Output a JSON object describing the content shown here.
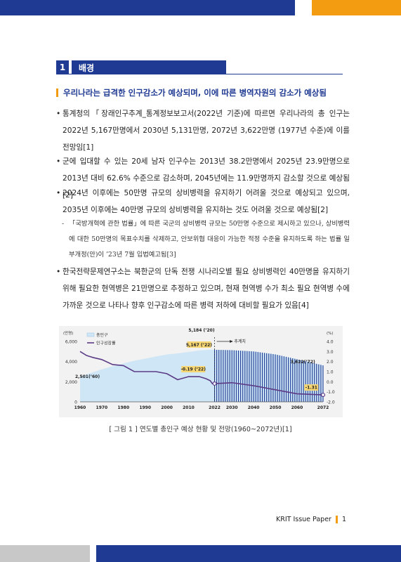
{
  "section": {
    "number": "1",
    "title": "배경"
  },
  "subheading": "우리나라는 급격한 인구감소가 예상되며, 이에 따른 병역자원의 감소가 예상됨",
  "bullets": [
    "통계청의「장래인구추계_통계정보보고서(2022년 기준)에 따르면 우리나라의 총 인구는 2022년 5,167만명에서 2030년 5,131만명, 2072년 3,622만명 (1977년 수준)에 이를 전망임[1]",
    "군에 입대할 수 있는 20세 남자 인구수는 2013년 38.2만명에서 2025년 23.9만명으로 2013년 대비 62.6% 수준으로 감소하며, 2045년에는 11.9만명까지 감소할 것으로 예상됨[2]",
    "2024년 이후에는 50만명 규모의 상비병력을 유지하기 어려울 것으로 예상되고 있으며, 2035년 이후에는 40만명 규모의 상비병력을 유지하는 것도 어려울 것으로 예상됨[2]",
    "한국전략문제연구소는 북한군의 단독 전쟁 시나리오별 필요 상비병력인 40만명을 유지하기 위해 필요한 현역병은 21만명으로 추정하고 있으며, 현재 현역병 수가 최소 필요 현역병 수에 가까운 것으로 나타나 향후 인구감소에 따른 병력 저하에 대비할 필요가 있음[4]"
  ],
  "sub_bullet": "「국방개혁에 관한 법률」에 따른 국군의 상비병력 규모는 50만명 수준으로 제시하고 있으나, 상비병력에 대한 50만명의 목표수치를 삭제하고, 안보위협 대응이 가능한 적정 수준을 유지하도록 하는 법률 일부개정(안)이 ’23년 7월 입법예고됨[3]",
  "colors": {
    "navy": "#1f3a93",
    "orange": "#f39c12",
    "pop_fill": "#cfe6f6",
    "growth_line": "#5b3b86",
    "projection": "#1f3a93"
  },
  "chart_data": {
    "type": "area",
    "y_left_unit": "(만명)",
    "y_right_unit": "(%)",
    "y_left_ticks": [
      "6,000",
      "4,000",
      "2,000",
      "0"
    ],
    "y_right_ticks": [
      "4.0",
      "3.0",
      "2.0",
      "1.0",
      "0.0",
      "-1.0",
      "-2.0"
    ],
    "x_ticks": [
      "1960",
      "1970",
      "1980",
      "1990",
      "2000",
      "2010",
      "2022",
      "2030",
      "2040",
      "2050",
      "2060",
      "2072"
    ],
    "ylim_left": [
      0,
      6000
    ],
    "ylim_right": [
      -2.0,
      4.0
    ],
    "legend": [
      "총인구",
      "인구성장률"
    ],
    "projection_label": "추계치",
    "annotations": [
      "5,184 (’20)",
      "5,167 (’22)",
      "2,501(’60)",
      "-0.19 (’22)",
      "3,622(’72)",
      "-1.31"
    ],
    "series": [
      {
        "name": "총인구",
        "x": [
          1960,
          1965,
          1970,
          1975,
          1980,
          1985,
          1990,
          1995,
          2000,
          2005,
          2010,
          2015,
          2020,
          2022,
          2030,
          2040,
          2050,
          2060,
          2072
        ],
        "values": [
          2501,
          2870,
          3224,
          3528,
          3812,
          4081,
          4287,
          4509,
          4701,
          4818,
          4955,
          5102,
          5184,
          5167,
          5131,
          5006,
          4711,
          4230,
          3622
        ]
      },
      {
        "name": "인구성장률",
        "x": [
          1960,
          1963,
          1966,
          1970,
          1975,
          1980,
          1985,
          1990,
          1995,
          2000,
          2005,
          2010,
          2015,
          2018,
          2020,
          2021,
          2022,
          2030,
          2040,
          2050,
          2060,
          2072
        ],
        "values": [
          3.0,
          2.6,
          2.4,
          2.2,
          1.7,
          1.6,
          1.0,
          1.0,
          1.0,
          0.8,
          0.2,
          0.5,
          0.5,
          0.3,
          0.1,
          -0.2,
          -0.19,
          -0.1,
          -0.4,
          -0.8,
          -1.2,
          -1.31
        ]
      }
    ]
  },
  "caption": "[ 그림 1 ] 연도별 총인구 예상 현황 및 전망(1960~2072년)[1]",
  "footer": {
    "label": "KRIT Issue Paper",
    "page": "1"
  }
}
